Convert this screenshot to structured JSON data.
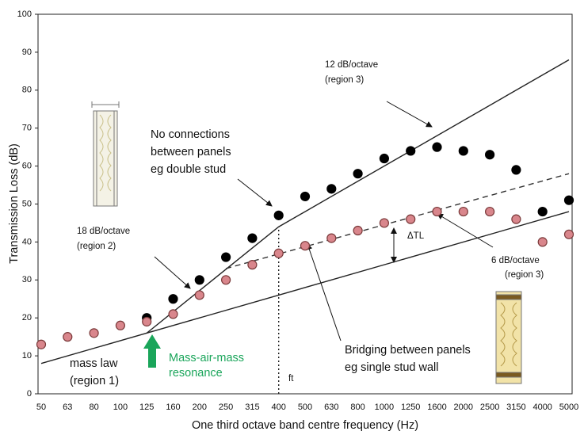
{
  "chart_data": {
    "type": "scatter",
    "y_label": "Transmission Loss (dB)",
    "x_label": "One third octave band centre frequency (Hz)",
    "categories": [
      "50",
      "63",
      "80",
      "100",
      "125",
      "160",
      "200",
      "250",
      "315",
      "400",
      "500",
      "630",
      "800",
      "1000",
      "1250",
      "1600",
      "2000",
      "2500",
      "3150",
      "4000",
      "5000"
    ],
    "ylim": [
      0,
      100
    ],
    "yticks": [
      0,
      10,
      20,
      30,
      40,
      50,
      60,
      70,
      80,
      90,
      100
    ],
    "series": [
      {
        "color": "#000000",
        "stroke": "#000000",
        "values": [
          null,
          null,
          null,
          null,
          20,
          25,
          30,
          36,
          41,
          47,
          52,
          54,
          58,
          62,
          64,
          65,
          64,
          63,
          59,
          48,
          51
        ]
      },
      {
        "color": "#d9868c",
        "stroke": "#7a3a3a",
        "values": [
          13,
          15,
          16,
          18,
          19,
          21,
          26,
          30,
          34,
          37,
          39,
          41,
          43,
          45,
          46,
          48,
          48,
          48,
          46,
          40,
          42
        ]
      }
    ],
    "lines": [
      {
        "x": [
          "50",
          "5000"
        ],
        "y": [
          8,
          48
        ],
        "style": "solid",
        "color": "#222222"
      },
      {
        "x": [
          "125",
          "400",
          "5000"
        ],
        "y": [
          16,
          44,
          88
        ],
        "style": "solid",
        "color": "#222222"
      },
      {
        "x": [
          "250",
          "5000"
        ],
        "y": [
          33,
          58
        ],
        "style": "dashed",
        "color": "#333333"
      },
      {
        "x": [
          "400",
          "400"
        ],
        "y": [
          0,
          44
        ],
        "style": "dotted",
        "color": "#222222"
      }
    ],
    "annotations": {
      "slope_12": [
        "12 dB/octave",
        "(region 3)"
      ],
      "no_connections": [
        "No connections",
        "between panels",
        "eg double stud"
      ],
      "slope_18": [
        "18 dB/octave",
        "(region 2)"
      ],
      "delta_tl": "ΔTL",
      "slope_6": [
        "6 dB/octave",
        "(region 3)"
      ],
      "bridging": [
        "Bridging between panels",
        "eg single stud wall"
      ],
      "mass_law": [
        "mass law",
        "(region 1)"
      ],
      "resonance": [
        "Mass-air-mass",
        "resonance"
      ],
      "ft": "ft"
    }
  }
}
